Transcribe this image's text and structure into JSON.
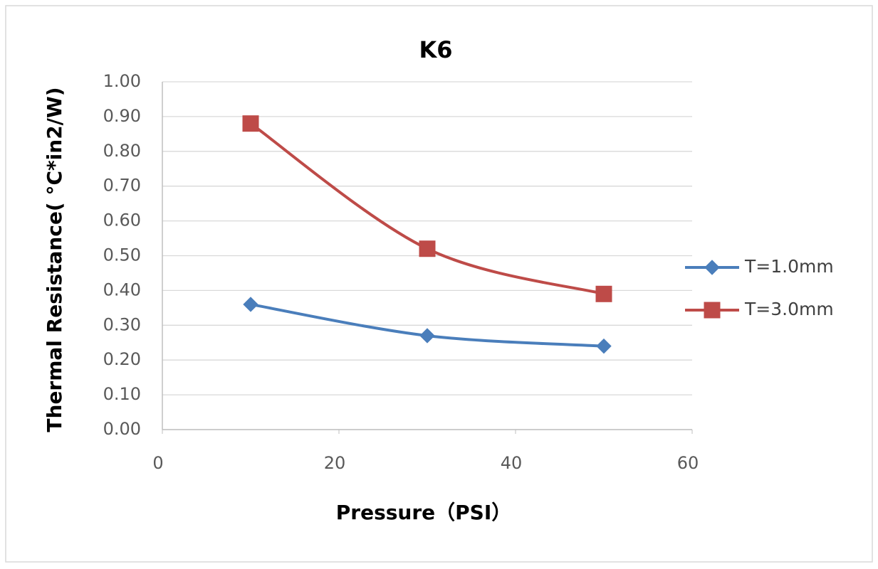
{
  "chart_data": {
    "type": "line",
    "title": "K6",
    "x_label": "Pressure（PSI）",
    "y_label": "Thermal Resistance( °C*in2/W)",
    "x": [
      10,
      30,
      50
    ],
    "series": [
      {
        "name": "T=1.0mm",
        "color": "#4a7ebb",
        "marker": "diamond",
        "values": [
          0.36,
          0.27,
          0.24
        ]
      },
      {
        "name": "T=3.0mm",
        "color": "#be4b48",
        "marker": "square",
        "values": [
          0.88,
          0.52,
          0.39
        ]
      }
    ],
    "xlim": [
      0,
      60
    ],
    "xticks": [
      0,
      20,
      40,
      60
    ],
    "ylim": [
      0,
      1
    ],
    "yticks": [
      {
        "value": 0,
        "label": "0.00"
      },
      {
        "value": 0.1,
        "label": "0.10"
      },
      {
        "value": 0.2,
        "label": "0.20"
      },
      {
        "value": 0.3,
        "label": "0.30"
      },
      {
        "value": 0.4,
        "label": "0.40"
      },
      {
        "value": 0.5,
        "label": "0.50"
      },
      {
        "value": 0.6,
        "label": "0.60"
      },
      {
        "value": 0.7,
        "label": "0.70"
      },
      {
        "value": 0.8,
        "label": "0.80"
      },
      {
        "value": 0.9,
        "label": "0.90"
      },
      {
        "value": 1,
        "label": "1.00"
      }
    ],
    "grid": true,
    "smooth": true,
    "legend": "right"
  }
}
